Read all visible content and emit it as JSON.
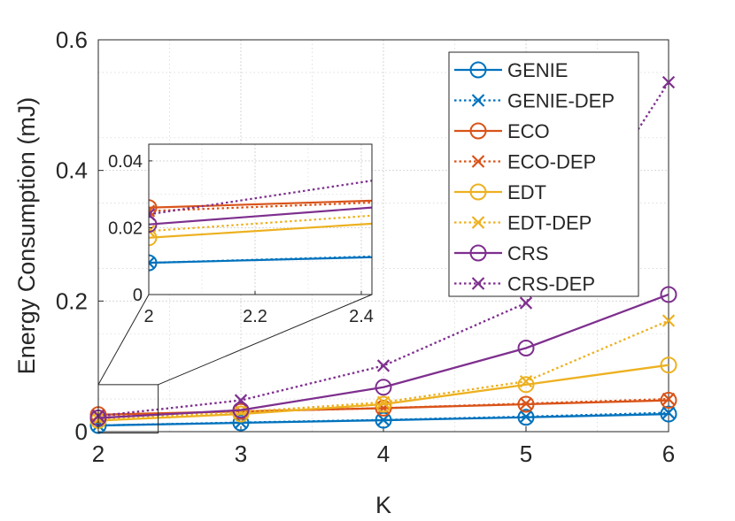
{
  "chart_data": {
    "type": "line",
    "xlabel": "K",
    "ylabel": "Energy Consumption (mJ)",
    "xlim": [
      2,
      6
    ],
    "ylim": [
      0,
      0.6
    ],
    "grid": true,
    "legend_position": "top-right",
    "x": [
      2,
      3,
      4,
      5,
      6
    ],
    "xticks": [
      2,
      3,
      4,
      5,
      6
    ],
    "xtick_labels": [
      "2",
      "3",
      "4",
      "5",
      "6"
    ],
    "yticks": [
      0,
      0.2,
      0.4,
      0.6
    ],
    "ytick_labels": [
      "0",
      "0.2",
      "0.4",
      "0.6"
    ],
    "series": [
      {
        "name": "GENIE",
        "color": "#0072BD",
        "line": "solid",
        "marker": "circle",
        "values": [
          0.0095,
          0.0135,
          0.0175,
          0.022,
          0.027
        ]
      },
      {
        "name": "GENIE-DEP",
        "color": "#0072BD",
        "line": "dotted",
        "marker": "x",
        "values": [
          0.0095,
          0.014,
          0.018,
          0.023,
          0.029
        ]
      },
      {
        "name": "ECO",
        "color": "#D95319",
        "line": "solid",
        "marker": "circle",
        "values": [
          0.026,
          0.031,
          0.036,
          0.042,
          0.048
        ]
      },
      {
        "name": "ECO-DEP",
        "color": "#D95319",
        "line": "dotted",
        "marker": "x",
        "values": [
          0.025,
          0.031,
          0.036,
          0.043,
          0.05
        ]
      },
      {
        "name": "EDT",
        "color": "#EDB120",
        "line": "solid",
        "marker": "circle",
        "values": [
          0.017,
          0.027,
          0.042,
          0.072,
          0.102
        ]
      },
      {
        "name": "EDT-DEP",
        "color": "#EDB120",
        "line": "dotted",
        "marker": "x",
        "values": [
          0.019,
          0.03,
          0.045,
          0.077,
          0.17
        ]
      },
      {
        "name": "CRS",
        "color": "#7E2F8E",
        "line": "solid",
        "marker": "circle",
        "values": [
          0.021,
          0.033,
          0.068,
          0.128,
          0.21
        ]
      },
      {
        "name": "CRS-DEP",
        "color": "#7E2F8E",
        "line": "dotted",
        "marker": "x",
        "values": [
          0.024,
          0.048,
          0.101,
          0.197,
          0.535
        ]
      }
    ],
    "inset": {
      "xlim": [
        2,
        2.42
      ],
      "ylim": [
        0,
        0.045
      ],
      "xticks": [
        2,
        2.2,
        2.4
      ],
      "xtick_labels": [
        "2",
        "2.2",
        "2.4"
      ],
      "yticks": [
        0,
        0.02,
        0.04
      ],
      "ytick_labels": [
        "0",
        "0.02",
        "0.04"
      ]
    }
  }
}
